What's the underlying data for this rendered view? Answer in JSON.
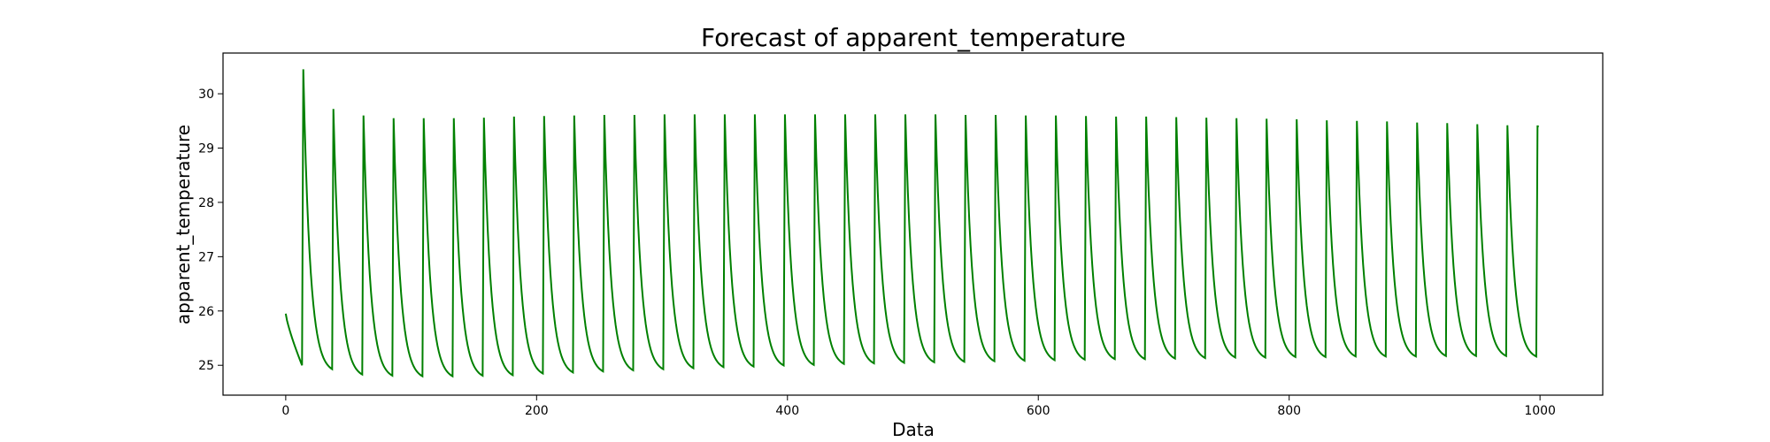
{
  "chart_data": {
    "type": "line",
    "title": "Forecast of apparent_temperature",
    "xlabel": "Data",
    "ylabel": "apparent_temperature",
    "xlim": [
      -50,
      1050
    ],
    "ylim": [
      24.45,
      30.75
    ],
    "xticks": [
      0,
      200,
      400,
      600,
      800,
      1000
    ],
    "yticks": [
      25,
      26,
      27,
      28,
      29,
      30
    ],
    "grid": false,
    "legend": "none",
    "line_color": "#008000",
    "period": 24,
    "cycles": [
      {
        "start": 0,
        "peak": 14,
        "peak_value": 30.45,
        "min_value": 25.0,
        "start_value": 25.95
      },
      {
        "start": 14,
        "peak": 38,
        "peak_value": 29.72,
        "min_value": 24.85
      },
      {
        "start": 38,
        "peak": 62,
        "peak_value": 29.6,
        "min_value": 24.76
      },
      {
        "start": 62,
        "peak": 86,
        "peak_value": 29.55,
        "min_value": 24.74
      },
      {
        "start": 86,
        "peak": 110,
        "peak_value": 29.55,
        "min_value": 24.73
      },
      {
        "start": 110,
        "peak": 134,
        "peak_value": 29.55,
        "min_value": 24.73
      },
      {
        "start": 134,
        "peak": 158,
        "peak_value": 29.56,
        "min_value": 24.74
      },
      {
        "start": 158,
        "peak": 182,
        "peak_value": 29.58,
        "min_value": 24.75
      },
      {
        "start": 182,
        "peak": 206,
        "peak_value": 29.59,
        "min_value": 24.78
      },
      {
        "start": 206,
        "peak": 230,
        "peak_value": 29.6,
        "min_value": 24.8
      },
      {
        "start": 230,
        "peak": 254,
        "peak_value": 29.61,
        "min_value": 24.82
      },
      {
        "start": 254,
        "peak": 278,
        "peak_value": 29.61,
        "min_value": 24.84
      },
      {
        "start": 278,
        "peak": 302,
        "peak_value": 29.62,
        "min_value": 24.86
      },
      {
        "start": 302,
        "peak": 326,
        "peak_value": 29.62,
        "min_value": 24.88
      },
      {
        "start": 326,
        "peak": 350,
        "peak_value": 29.62,
        "min_value": 24.9
      },
      {
        "start": 350,
        "peak": 374,
        "peak_value": 29.62,
        "min_value": 24.91
      },
      {
        "start": 374,
        "peak": 398,
        "peak_value": 29.62,
        "min_value": 24.93
      },
      {
        "start": 398,
        "peak": 422,
        "peak_value": 29.62,
        "min_value": 24.94
      },
      {
        "start": 422,
        "peak": 446,
        "peak_value": 29.62,
        "min_value": 24.96
      },
      {
        "start": 446,
        "peak": 470,
        "peak_value": 29.62,
        "min_value": 24.97
      },
      {
        "start": 470,
        "peak": 494,
        "peak_value": 29.62,
        "min_value": 24.98
      },
      {
        "start": 494,
        "peak": 518,
        "peak_value": 29.62,
        "min_value": 24.99
      },
      {
        "start": 518,
        "peak": 542,
        "peak_value": 29.61,
        "min_value": 25.0
      },
      {
        "start": 542,
        "peak": 566,
        "peak_value": 29.61,
        "min_value": 25.01
      },
      {
        "start": 566,
        "peak": 590,
        "peak_value": 29.6,
        "min_value": 25.02
      },
      {
        "start": 590,
        "peak": 614,
        "peak_value": 29.6,
        "min_value": 25.03
      },
      {
        "start": 614,
        "peak": 638,
        "peak_value": 29.59,
        "min_value": 25.04
      },
      {
        "start": 638,
        "peak": 662,
        "peak_value": 29.58,
        "min_value": 25.05
      },
      {
        "start": 662,
        "peak": 686,
        "peak_value": 29.58,
        "min_value": 25.05
      },
      {
        "start": 686,
        "peak": 710,
        "peak_value": 29.57,
        "min_value": 25.06
      },
      {
        "start": 710,
        "peak": 734,
        "peak_value": 29.56,
        "min_value": 25.07
      },
      {
        "start": 734,
        "peak": 758,
        "peak_value": 29.55,
        "min_value": 25.08
      },
      {
        "start": 758,
        "peak": 782,
        "peak_value": 29.54,
        "min_value": 25.08
      },
      {
        "start": 782,
        "peak": 806,
        "peak_value": 29.53,
        "min_value": 25.09
      },
      {
        "start": 806,
        "peak": 830,
        "peak_value": 29.51,
        "min_value": 25.09
      },
      {
        "start": 830,
        "peak": 854,
        "peak_value": 29.5,
        "min_value": 25.1
      },
      {
        "start": 854,
        "peak": 878,
        "peak_value": 29.49,
        "min_value": 25.1
      },
      {
        "start": 878,
        "peak": 902,
        "peak_value": 29.47,
        "min_value": 25.1
      },
      {
        "start": 902,
        "peak": 926,
        "peak_value": 29.46,
        "min_value": 25.11
      },
      {
        "start": 926,
        "peak": 950,
        "peak_value": 29.44,
        "min_value": 25.11
      },
      {
        "start": 950,
        "peak": 974,
        "peak_value": 29.42,
        "min_value": 25.11
      },
      {
        "start": 974,
        "peak": 998,
        "peak_value": 29.4,
        "min_value": 25.1
      }
    ],
    "end": {
      "x": 999,
      "y": 29.4
    }
  }
}
